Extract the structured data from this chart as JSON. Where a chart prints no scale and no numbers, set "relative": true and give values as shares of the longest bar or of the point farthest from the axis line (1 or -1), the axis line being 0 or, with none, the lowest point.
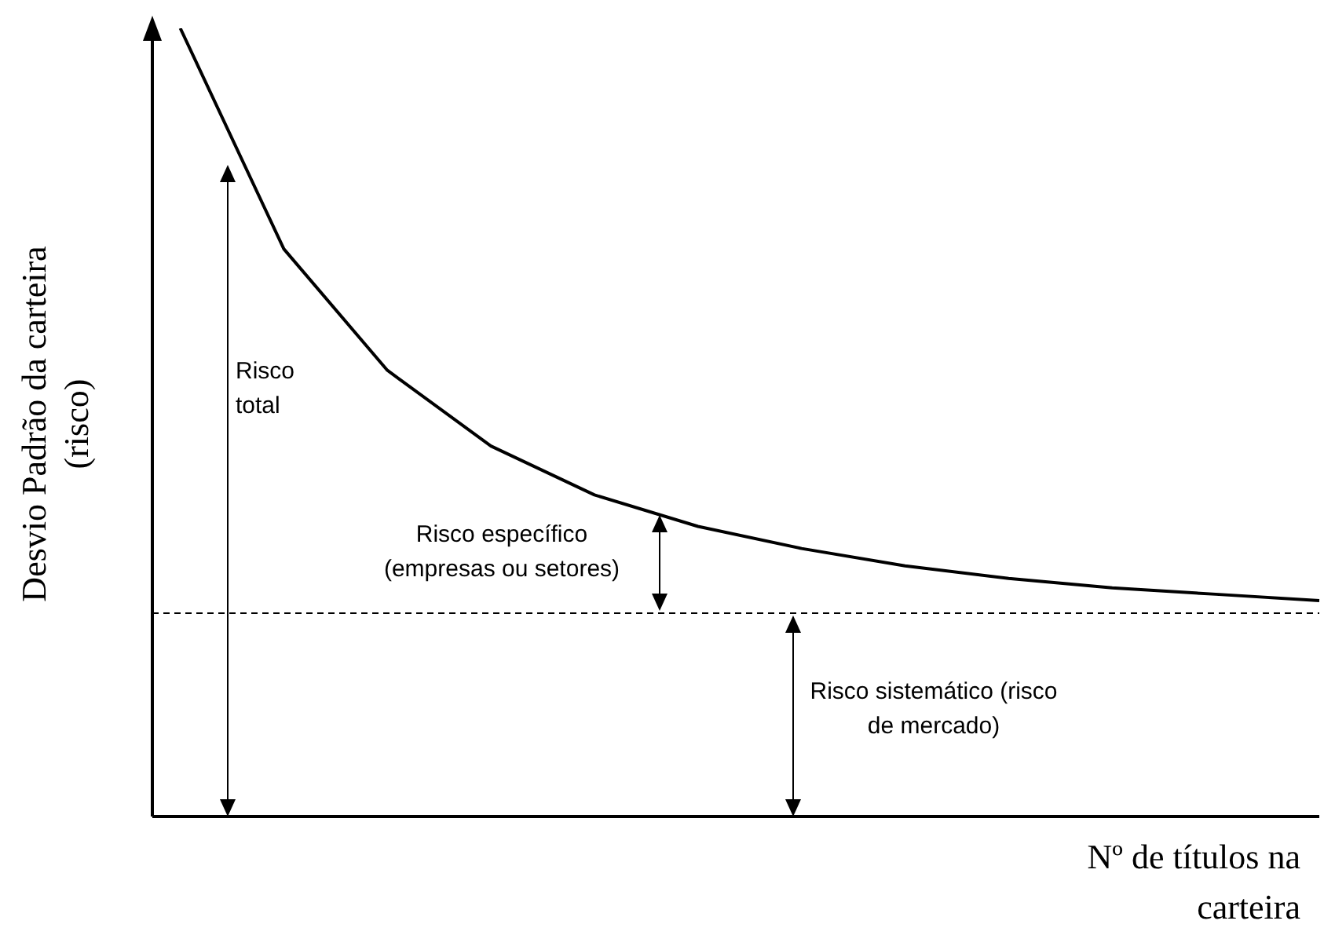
{
  "chart_data": {
    "type": "line",
    "relative": true,
    "xlabel": "Nº de títulos na carteira",
    "ylabel": "Desvio Padrão da carteira (risco)",
    "categories": [
      null,
      null,
      null,
      null,
      null,
      null,
      null,
      null,
      null,
      null,
      null,
      null
    ],
    "values": [
      1,
      0.72,
      0.566,
      0.47,
      0.408,
      0.368,
      0.34,
      0.318,
      0.302,
      0.29,
      0.282,
      0.274
    ],
    "color": "#000000",
    "ref_lines": [
      {
        "axis": "y",
        "value": 0.258,
        "color": "#000000",
        "line_style": "dashed"
      }
    ],
    "annotations": [
      "Risco total",
      "Risco específico (empresas ou setores)",
      "Risco sistemático (risco de mercado)"
    ]
  }
}
